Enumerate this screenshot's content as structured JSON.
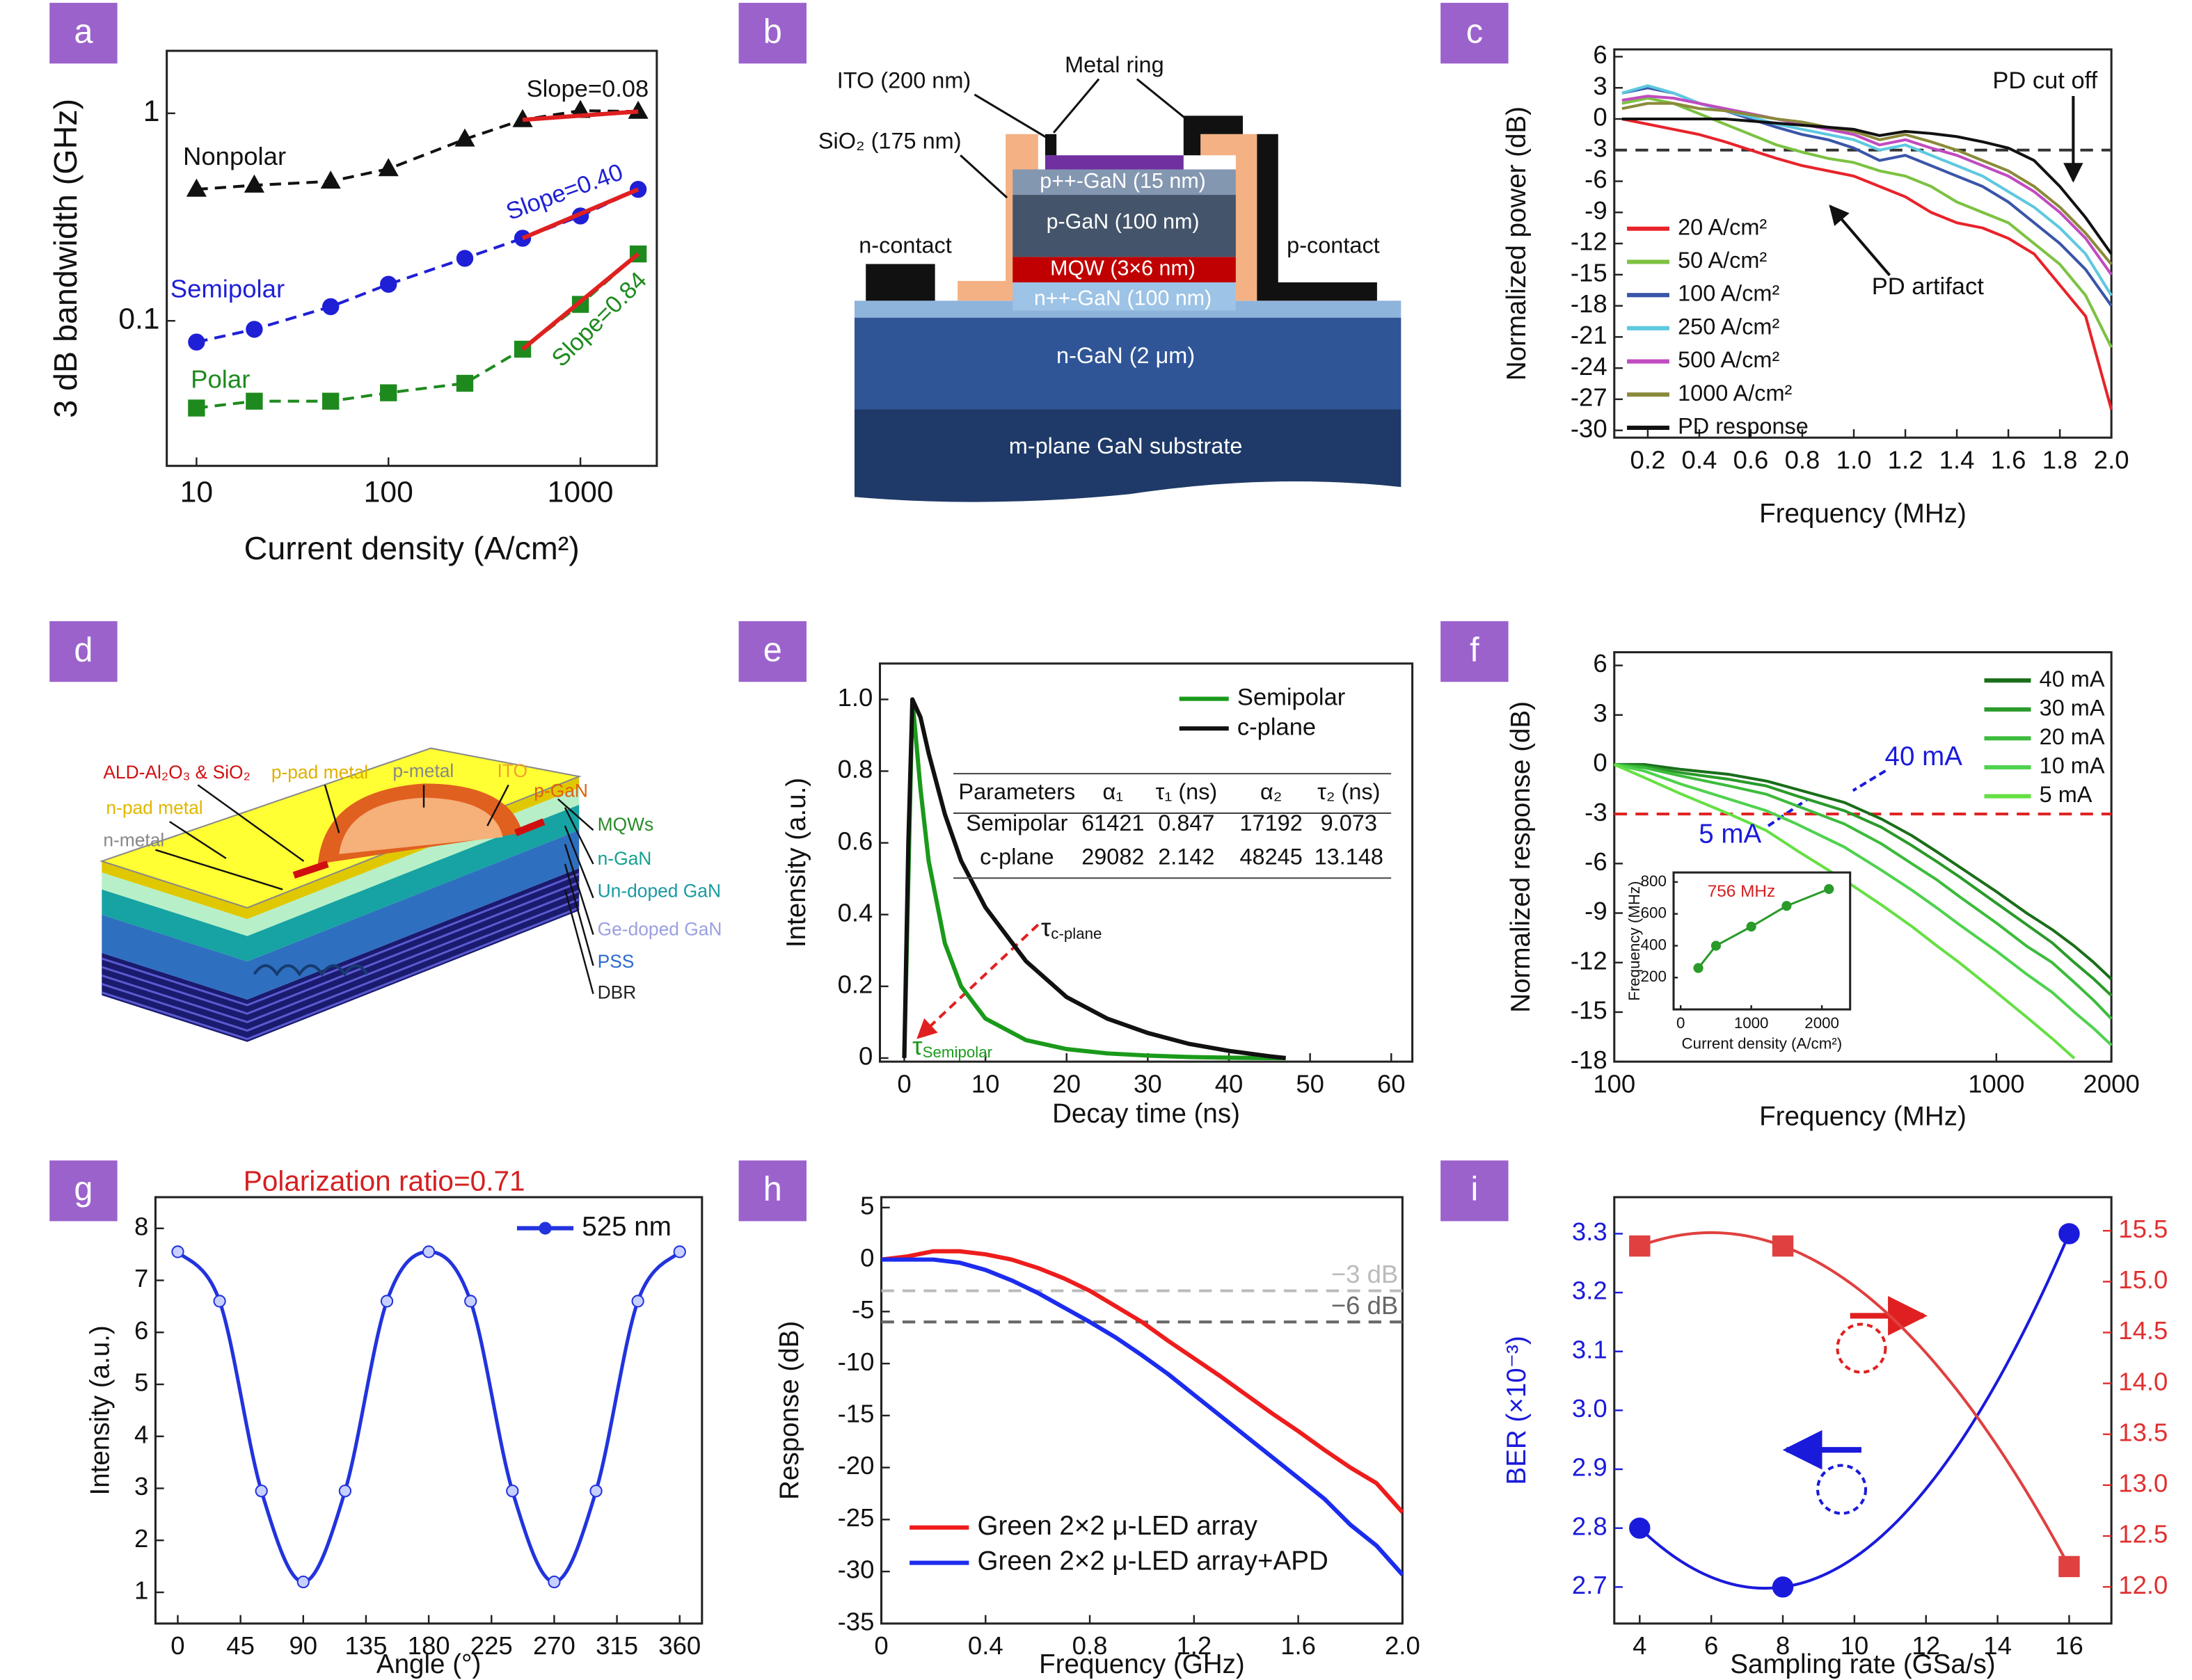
{
  "chart_data": [
    {
      "type": "line",
      "panel_label": "a",
      "xlabel": "Current density (A/cm²)",
      "ylabel": "3 dB bandwidth (GHz)",
      "xlog": true,
      "ylog": true,
      "xlim": [
        7,
        2500
      ],
      "ylim": [
        0.02,
        2
      ],
      "xticks": [
        10,
        100,
        1000
      ],
      "yticks": [
        0.1,
        1
      ],
      "line_style": "dashed",
      "x": [
        10,
        20,
        50,
        100,
        250,
        500,
        1000,
        2000
      ],
      "series": [
        {
          "name": "Nonpolar",
          "color": "#111111",
          "marker": "triangle",
          "values": [
            0.43,
            0.45,
            0.47,
            0.54,
            0.75,
            0.93,
            1.03,
            1.02
          ]
        },
        {
          "name": "Semipolar",
          "color": "#1f1fd6",
          "marker": "circle",
          "values": [
            0.079,
            0.091,
            0.117,
            0.15,
            0.2,
            0.25,
            0.32,
            0.43
          ]
        },
        {
          "name": "Polar",
          "color": "#1e8a1e",
          "marker": "square",
          "values": [
            0.038,
            0.041,
            0.041,
            0.045,
            0.05,
            0.073,
            0.12,
            0.21
          ]
        }
      ],
      "fits": [
        {
          "label": "Slope=0.08",
          "color": "#e02020",
          "x": [
            500,
            2000
          ],
          "values": [
            0.93,
            1.02
          ]
        },
        {
          "label": "Slope=0.40",
          "color": "#e02020",
          "x": [
            500,
            2000
          ],
          "values": [
            0.25,
            0.43
          ]
        },
        {
          "label": "Slope=0.84",
          "color": "#e02020",
          "x": [
            500,
            2000
          ],
          "values": [
            0.073,
            0.21
          ]
        }
      ]
    },
    {
      "type": "line",
      "panel_label": "c",
      "xlabel": "Frequency (MHz)",
      "ylabel": "Normalized power (dB)",
      "xlim": [
        0.07,
        2
      ],
      "ylim": [
        -30.7,
        6.7
      ],
      "xticks": [
        0.2,
        0.4,
        0.6,
        0.8,
        {
          "value": 1,
          "label": "1.0"
        },
        1.2,
        1.4,
        1.6,
        1.8,
        {
          "value": 2,
          "label": "2.0"
        }
      ],
      "yticks": [
        6,
        3,
        0,
        -3,
        -6,
        -9,
        -12,
        -15,
        -18,
        -21,
        -24,
        -27,
        -30
      ],
      "legend": "lower left",
      "hlines": [
        {
          "value": -3,
          "color": "#333333"
        }
      ],
      "annotations": [
        "PD cut off",
        "PD artifact"
      ],
      "x": [
        0.1,
        0.2,
        0.3,
        0.4,
        0.5,
        0.6,
        0.7,
        0.8,
        0.9,
        1.0,
        1.1,
        1.2,
        1.3,
        1.4,
        1.5,
        1.6,
        1.7,
        1.8,
        1.9,
        2.0
      ],
      "series": [
        {
          "name": "20 A/cm²",
          "color": "#e8232a",
          "values": [
            0,
            -0.5,
            -1,
            -1.5,
            -2.2,
            -3,
            -3.8,
            -4.5,
            -5,
            -5.5,
            -6.5,
            -7.5,
            -9,
            -10,
            -10.5,
            -11.5,
            -13,
            -16,
            -19,
            -28
          ]
        },
        {
          "name": "50 A/cm²",
          "color": "#7cc242",
          "values": [
            1.5,
            2,
            1.5,
            0.5,
            -0.5,
            -1.5,
            -2.5,
            -3.2,
            -3.8,
            -4.2,
            -5,
            -5.5,
            -6.5,
            -8,
            -9,
            -10,
            -12,
            -14,
            -17,
            -22
          ]
        },
        {
          "name": "100 A/cm²",
          "color": "#3a55a8",
          "values": [
            2.5,
            3,
            2.5,
            1.5,
            0.8,
            0,
            -0.8,
            -1.5,
            -2,
            -2.8,
            -4,
            -3.5,
            -4.5,
            -5.5,
            -6.5,
            -8,
            -10,
            -12,
            -14.5,
            -18
          ]
        },
        {
          "name": "250 A/cm²",
          "color": "#5ec8e0",
          "values": [
            2.5,
            3.2,
            2.5,
            1.5,
            0.8,
            0.2,
            -0.5,
            -1,
            -1.5,
            -2,
            -3,
            -2.5,
            -3.5,
            -4.5,
            -5.5,
            -7,
            -8.5,
            -10.5,
            -13,
            -17
          ]
        },
        {
          "name": "500 A/cm²",
          "color": "#c04bc0",
          "values": [
            1.8,
            2.2,
            2,
            1.5,
            1,
            0.5,
            0,
            -0.5,
            -1,
            -1.5,
            -2.5,
            -2,
            -2.8,
            -3.5,
            -4.5,
            -5.5,
            -7,
            -9,
            -11.5,
            -15
          ]
        },
        {
          "name": "1000 A/cm²",
          "color": "#8a8a3a",
          "values": [
            1,
            1.5,
            1.5,
            1,
            0.8,
            0.4,
            0,
            -0.3,
            -0.8,
            -1.2,
            -2,
            -1.5,
            -2.2,
            -3,
            -4,
            -5,
            -6.5,
            -8.5,
            -11,
            -14
          ]
        },
        {
          "name": "PD response",
          "color": "#111111",
          "values": [
            0,
            0,
            0,
            0,
            0,
            -0.2,
            -0.4,
            -0.6,
            -0.8,
            -1,
            -1.6,
            -1.2,
            -1.4,
            -1.7,
            -2.2,
            -2.8,
            -4,
            -6.5,
            -9.5,
            -13
          ]
        }
      ]
    },
    {
      "type": "line",
      "panel_label": "e",
      "xlabel": "Decay time (ns)",
      "ylabel": "Intensity (a.u.)",
      "xlim": [
        -3,
        62.6
      ],
      "ylim": [
        -0.01,
        1.1
      ],
      "xticks": [
        0,
        10,
        20,
        30,
        40,
        50,
        60
      ],
      "yticks": [
        0,
        0.2,
        0.4,
        0.6,
        0.8,
        {
          "value": 1,
          "label": "1.0"
        }
      ],
      "legend": "upper right",
      "annotations": [
        {
          "symbol": "τ",
          "subscript": "c-plane"
        },
        {
          "symbol": "τ",
          "subscript": "Semipolar"
        }
      ],
      "table": {
        "header": [
          "Parameters",
          "α₁",
          "τ₁ (ns)",
          "α₂",
          "τ₂ (ns)"
        ],
        "rows": [
          [
            "Semipolar",
            "61421",
            "0.847",
            "17192",
            "9.073"
          ],
          [
            "c-plane",
            "29082",
            "2.142",
            "48245",
            "13.148"
          ]
        ]
      },
      "x": [
        0,
        0.5,
        1,
        2,
        3,
        5,
        7,
        10,
        15,
        20,
        25,
        30,
        35,
        40,
        45,
        47
      ],
      "series": [
        {
          "name": "Semipolar",
          "color": "#1a9a1a",
          "values": [
            0,
            0.5,
            1,
            0.75,
            0.55,
            0.32,
            0.2,
            0.11,
            0.05,
            0.025,
            0.013,
            0.007,
            0.003,
            0.001,
            0,
            0
          ]
        },
        {
          "name": "c-plane",
          "color": "#111111",
          "values": [
            0,
            0.6,
            1,
            0.95,
            0.85,
            0.68,
            0.55,
            0.42,
            0.27,
            0.17,
            0.11,
            0.07,
            0.04,
            0.02,
            0.005,
            0
          ]
        }
      ]
    },
    {
      "type": "line",
      "panel_label": "f",
      "xlabel": "Frequency (MHz)",
      "ylabel": "Normalized response (dB)",
      "xlog": true,
      "xlim": [
        100,
        2000
      ],
      "ylim": [
        -18,
        6.8
      ],
      "xticks": [
        100,
        1000,
        2000
      ],
      "yticks": [
        6,
        3,
        0,
        -3,
        -6,
        -9,
        -12,
        -15,
        -18
      ],
      "legend": "upper right",
      "hlines": [
        {
          "value": -3,
          "color": "#e02020"
        }
      ],
      "annotations": [
        "40 mA",
        "5 mA"
      ],
      "x": [
        100,
        120,
        150,
        200,
        250,
        300,
        400,
        500,
        600,
        700,
        800,
        1000,
        1200,
        1400,
        1600,
        1800,
        2000
      ],
      "series": [
        {
          "name": "40 mA",
          "color": "#1a6e1a",
          "values": [
            0,
            0,
            -0.3,
            -0.6,
            -1,
            -1.5,
            -2.3,
            -3.3,
            -4.3,
            -5.3,
            -6.2,
            -7.7,
            -9,
            -10,
            -11,
            -12,
            -13
          ]
        },
        {
          "name": "30 mA",
          "color": "#2a9a2a",
          "values": [
            0,
            -0.1,
            -0.5,
            -0.9,
            -1.3,
            -1.9,
            -2.8,
            -3.8,
            -4.9,
            -5.9,
            -6.8,
            -8.4,
            -9.7,
            -10.8,
            -12,
            -13,
            -14
          ]
        },
        {
          "name": "20 mA",
          "color": "#3cbc3c",
          "values": [
            0,
            -0.2,
            -0.7,
            -1.3,
            -1.8,
            -2.5,
            -3.6,
            -4.8,
            -6,
            -7,
            -8,
            -9.6,
            -11,
            -12,
            -13.2,
            -14.3,
            -15.4
          ]
        },
        {
          "name": "10 mA",
          "color": "#4fd24f",
          "values": [
            0,
            -0.4,
            -1.2,
            -2.1,
            -2.8,
            -3.6,
            -5,
            -6.4,
            -7.6,
            -8.7,
            -9.7,
            -11.3,
            -12.7,
            -13.8,
            -15,
            -16,
            -17
          ]
        },
        {
          "name": "5 mA",
          "color": "#66e044",
          "values": [
            0,
            -0.8,
            -1.8,
            -3,
            -4,
            -5.2,
            -7,
            -8.5,
            -9.8,
            -11,
            -12,
            -13.8,
            -15.3,
            -16.6,
            -17.8,
            null,
            null
          ]
        }
      ]
    },
    {
      "type": "line",
      "xlabel": "Current density (A/cm²)",
      "ylabel": "Frequency (MHz)",
      "xlim": [
        -100,
        2400
      ],
      "ylim": [
        0,
        860
      ],
      "xticks": [
        0,
        1000,
        2000
      ],
      "yticks": [
        200,
        400,
        600,
        800
      ],
      "annotations": [
        "756 MHz"
      ],
      "x": [
        250,
        500,
        1000,
        1500,
        2100
      ],
      "series": [
        {
          "color": "#2a9a2a",
          "marker": "circle",
          "values": [
            260,
            400,
            520,
            650,
            756
          ]
        }
      ]
    },
    {
      "type": "line",
      "panel_label": "g",
      "title": "Polarization ratio=0.71",
      "title_color": "#d42020",
      "xlabel": "Angle (°)",
      "ylabel": "Intensity (a.u.)",
      "smooth": true,
      "xlim": [
        -16,
        376
      ],
      "ylim": [
        0.4,
        8.6
      ],
      "xticks": [
        0,
        45,
        90,
        135,
        180,
        225,
        270,
        315,
        360
      ],
      "yticks": [
        1,
        2,
        3,
        4,
        5,
        6,
        7,
        8
      ],
      "legend": "upper right",
      "x": [
        0,
        30,
        60,
        90,
        120,
        150,
        180,
        210,
        240,
        270,
        300,
        330,
        360
      ],
      "series": [
        {
          "name": "525 nm",
          "color": "#2233dd",
          "marker": "circle",
          "values": [
            7.55,
            6.6,
            2.95,
            1.2,
            2.95,
            6.6,
            7.55,
            6.6,
            2.95,
            1.2,
            2.95,
            6.6,
            7.55
          ]
        }
      ]
    },
    {
      "type": "line",
      "panel_label": "h",
      "xlabel": "Frequency (GHz)",
      "ylabel": "Response (dB)",
      "xlim": [
        0,
        2
      ],
      "ylim": [
        -35,
        6
      ],
      "xticks": [
        0,
        0.4,
        0.8,
        1.2,
        1.6,
        {
          "value": 2,
          "label": "2.0"
        }
      ],
      "yticks": [
        5,
        0,
        -5,
        -10,
        -15,
        -20,
        -25,
        -30,
        -35
      ],
      "legend": "lower left",
      "hlines": [
        {
          "value": -3,
          "label": "−3 dB",
          "color": "#bbbbbb"
        },
        {
          "value": -6,
          "label": "−6 dB",
          "color": "#666666"
        }
      ],
      "x": [
        0,
        0.1,
        0.2,
        0.3,
        0.4,
        0.5,
        0.6,
        0.7,
        0.8,
        0.9,
        1.0,
        1.1,
        1.2,
        1.3,
        1.4,
        1.5,
        1.6,
        1.7,
        1.8,
        1.9,
        2.0
      ],
      "series": [
        {
          "name": "Green 2×2 μ-LED array",
          "color": "#ee1c1c",
          "values": [
            0,
            0.3,
            0.8,
            0.8,
            0.5,
            0,
            -0.8,
            -1.8,
            -3,
            -4.5,
            -6,
            -7.8,
            -9.5,
            -11.2,
            -13,
            -14.8,
            -16.5,
            -18.3,
            -20,
            -21.5,
            -24.3
          ]
        },
        {
          "name": "Green 2×2 μ-LED array+APD",
          "color": "#1c2cee",
          "values": [
            0,
            0,
            0,
            -0.3,
            -1,
            -2,
            -3.2,
            -4.6,
            -6,
            -7.5,
            -9.2,
            -11,
            -13,
            -15,
            -17,
            -19,
            -21,
            -23,
            -25.5,
            -27.5,
            -30.3
          ]
        }
      ]
    },
    {
      "type": "scatter",
      "panel_label": "i",
      "xlabel": "Sampling rate (GSa/s)",
      "ylabel": "BER (×10⁻³)",
      "y_color": "#1a1adb",
      "y2_color": "#e03030",
      "fit": "quadratic",
      "xlim": [
        3.29,
        17.18
      ],
      "ylim": [
        2.638,
        3.362
      ],
      "y2lim": [
        11.64,
        15.83
      ],
      "xticks": [
        4,
        6,
        8,
        10,
        12,
        14,
        16
      ],
      "yticks": [
        2.7,
        2.8,
        2.9,
        {
          "value": 3,
          "label": "3.0"
        },
        3.1,
        3.2,
        3.3
      ],
      "y2ticks": [
        {
          "value": 12,
          "label": "12.0"
        },
        12.5,
        {
          "value": 13,
          "label": "13.0"
        },
        13.5,
        {
          "value": 14,
          "label": "14.0"
        },
        14.5,
        {
          "value": 15,
          "label": "15.0"
        },
        15.5
      ],
      "x": [
        4,
        8,
        16
      ],
      "series": [
        {
          "color": "#1a1adb",
          "marker": "circle",
          "values": [
            2.8,
            2.7,
            3.3
          ]
        },
        {
          "color": "#e04040",
          "marker": "square",
          "axis": "y2",
          "values": [
            15.35,
            15.35,
            12.2
          ]
        }
      ]
    }
  ],
  "diagrams": [
    {
      "panel_label": "b",
      "labels": [
        "ITO (200 nm)",
        "Metal ring",
        "SiO₂ (175 nm)",
        "p++-GaN (15 nm)",
        "p-GaN (100 nm)",
        "MQW (3×6 nm)",
        "n++-GaN (100 nm)",
        "n-contact",
        "p-contact",
        "n-GaN (2 μm)",
        "m-plane GaN substrate"
      ]
    },
    {
      "panel_label": "d",
      "labels": [
        "ALD-Al₂O₃ & SiO₂",
        "p-pad metal",
        "p-metal",
        "ITO",
        "p-GaN",
        "n-pad metal",
        "n-metal",
        "MQWs",
        "n-GaN",
        "Un-doped GaN",
        "Ge-doped GaN",
        "PSS",
        "DBR"
      ]
    }
  ]
}
